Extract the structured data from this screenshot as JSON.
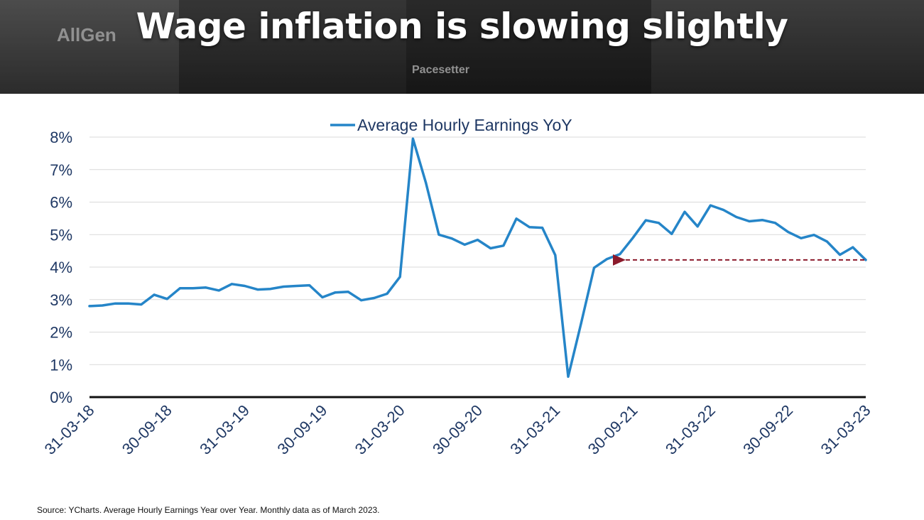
{
  "header": {
    "title": "Wage inflation is slowing slightly",
    "banner_logos": [
      "AllGen",
      "Pacesetter"
    ]
  },
  "footer": {
    "source": "Source: YCharts. Average Hourly Earnings Year over Year. Monthly data as of March 2023."
  },
  "colors": {
    "line": "#2585c8",
    "axis_text": "#1f3864",
    "arrow": "#8b1a2b",
    "grid": "#d9d9d9",
    "baseline": "#111111"
  },
  "chart_data": {
    "type": "line",
    "title": "",
    "xlabel": "",
    "ylabel": "",
    "ylim": [
      0,
      8
    ],
    "grid": true,
    "legend": "top-center",
    "y_ticks": [
      "0%",
      "1%",
      "2%",
      "3%",
      "4%",
      "5%",
      "6%",
      "7%",
      "8%"
    ],
    "x_ticks": [
      "31-03-18",
      "30-09-18",
      "31-03-19",
      "30-09-19",
      "31-03-20",
      "30-09-20",
      "31-03-21",
      "30-09-21",
      "31-03-22",
      "30-09-22",
      "31-03-23"
    ],
    "series": [
      {
        "name": "Average Hourly Earnings YoY",
        "x": [
          "31-03-18",
          "30-04-18",
          "31-05-18",
          "30-06-18",
          "31-07-18",
          "31-08-18",
          "30-09-18",
          "31-10-18",
          "30-11-18",
          "31-12-18",
          "31-01-19",
          "28-02-19",
          "31-03-19",
          "30-04-19",
          "31-05-19",
          "30-06-19",
          "31-07-19",
          "31-08-19",
          "30-09-19",
          "31-10-19",
          "30-11-19",
          "31-12-19",
          "31-01-20",
          "29-02-20",
          "31-03-20",
          "30-04-20",
          "31-05-20",
          "30-06-20",
          "31-07-20",
          "31-08-20",
          "30-09-20",
          "31-10-20",
          "30-11-20",
          "31-12-20",
          "31-01-21",
          "28-02-21",
          "31-03-21",
          "30-04-21",
          "31-05-21",
          "30-06-21",
          "31-07-21",
          "31-08-21",
          "30-09-21",
          "31-10-21",
          "30-11-21",
          "31-12-21",
          "31-01-22",
          "28-02-22",
          "31-03-22",
          "30-04-22",
          "31-05-22",
          "30-06-22",
          "31-07-22",
          "31-08-22",
          "30-09-22",
          "31-10-22",
          "30-11-22",
          "31-12-22",
          "31-01-23",
          "28-02-23",
          "31-03-23"
        ],
        "values": [
          2.8,
          2.82,
          2.88,
          2.88,
          2.85,
          3.15,
          3.02,
          3.35,
          3.35,
          3.37,
          3.28,
          3.48,
          3.42,
          3.31,
          3.33,
          3.4,
          3.42,
          3.44,
          3.07,
          3.22,
          3.24,
          2.98,
          3.05,
          3.18,
          3.7,
          7.95,
          6.6,
          5.0,
          4.88,
          4.69,
          4.84,
          4.58,
          4.66,
          5.49,
          5.23,
          5.21,
          4.37,
          0.63,
          2.27,
          3.98,
          4.25,
          4.4,
          4.9,
          5.44,
          5.36,
          5.02,
          5.7,
          5.25,
          5.9,
          5.76,
          5.54,
          5.41,
          5.45,
          5.36,
          5.08,
          4.89,
          4.99,
          4.79,
          4.38,
          4.61,
          4.22
        ]
      }
    ],
    "annotations": [
      {
        "type": "dashed-arrow",
        "from_x": "31-03-23",
        "to_x": "31-08-21",
        "y": 4.22
      }
    ]
  }
}
